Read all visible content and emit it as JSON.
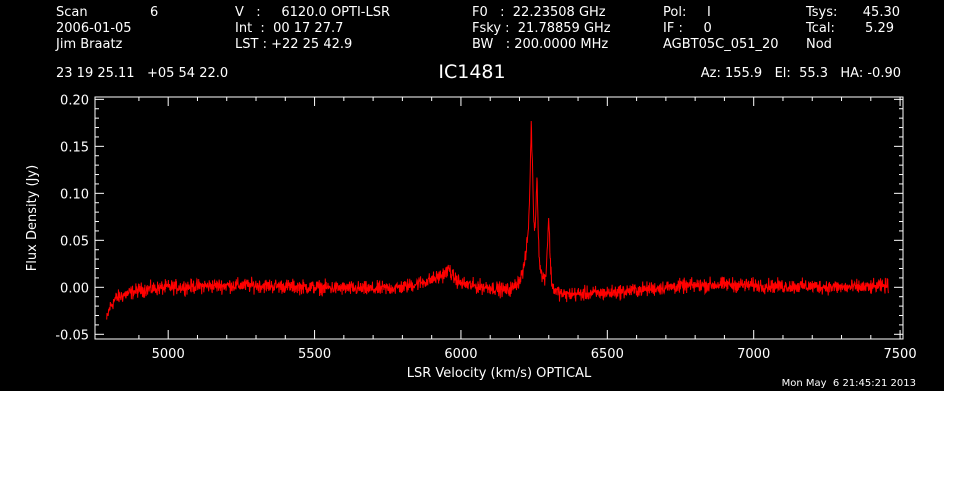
{
  "header": {
    "col1": {
      "scan_label": "Scan",
      "scan_value": "6",
      "date": "2006-01-05",
      "observer": "Jim Braatz"
    },
    "col2": {
      "v_line": "V   :     6120.0 OPTI-LSR",
      "int_line": "Int  :  00 17 27.7",
      "lst_line": "LST : +22 25 42.9"
    },
    "col3": {
      "f0_line": "F0   :  22.23508 GHz",
      "fsky_line": "Fsky :  21.78859 GHz",
      "bw_line": "BW   : 200.0000 MHz"
    },
    "col4": {
      "pol_line": "Pol:     I",
      "if_line": "IF :     0",
      "project": "AGBT05C_051_20"
    },
    "col5": {
      "tsys_label": "Tsys:",
      "tsys_value": "45.30",
      "tcal_label": "Tcal:",
      "tcal_value": "5.29",
      "mode": "Nod"
    },
    "coords": "23 19 25.11   +05 54 22.0",
    "object": "IC1481",
    "azel": "Az: 155.9   El:  55.3   HA: -0.90"
  },
  "footer": {
    "timestamp": "Mon May  6 21:45:21 2013"
  },
  "colors": {
    "background": "#000000",
    "axes": "#ffffff",
    "trace": "#ff0000"
  },
  "chart_data": {
    "type": "line",
    "title": "IC1481",
    "xlabel": "LSR Velocity (km/s) OPTICAL",
    "ylabel": "Flux Density (Jy)",
    "xlim": [
      4750,
      7510
    ],
    "ylim": [
      -0.055,
      0.2025
    ],
    "xticks": [
      5000,
      5500,
      6000,
      6500,
      7000,
      7500
    ],
    "xtick_labels": [
      "5000",
      "5500",
      "6000",
      "6500",
      "7000",
      "7500"
    ],
    "yticks": [
      -0.05,
      0.0,
      0.05,
      0.1,
      0.15,
      0.2
    ],
    "ytick_labels": [
      "-0.05",
      "0.00",
      "0.05",
      "0.10",
      "0.15",
      "0.20"
    ],
    "grid": false,
    "series": [
      {
        "x": [
          4790,
          4800,
          4820,
          4850,
          4900,
          5000,
          5100,
          5200,
          5300,
          5400,
          5500,
          5600,
          5700,
          5800,
          5850,
          5900,
          5930,
          5950,
          5960,
          5970,
          6000,
          6050,
          6100,
          6130,
          6160,
          6180,
          6200,
          6210,
          6220,
          6230,
          6235,
          6240,
          6245,
          6250,
          6255,
          6260,
          6265,
          6270,
          6280,
          6290,
          6300,
          6305,
          6310,
          6320,
          6350,
          6400,
          6500,
          6600,
          6700,
          6800,
          6900,
          7000,
          7100,
          7200,
          7300,
          7400,
          7460
        ],
        "y": [
          -0.035,
          -0.022,
          -0.012,
          -0.008,
          -0.003,
          0.0,
          0.001,
          0.002,
          0.002,
          0.001,
          0.0,
          -0.001,
          -0.002,
          0.0,
          0.004,
          0.008,
          0.012,
          0.016,
          0.02,
          0.012,
          0.004,
          0.001,
          0.0,
          -0.002,
          -0.003,
          0.0,
          0.008,
          0.015,
          0.03,
          0.06,
          0.1,
          0.175,
          0.12,
          0.06,
          0.075,
          0.12,
          0.05,
          0.02,
          0.01,
          0.012,
          0.075,
          0.03,
          0.004,
          -0.003,
          -0.008,
          -0.007,
          -0.006,
          -0.003,
          0.0,
          0.002,
          0.003,
          0.002,
          0.001,
          0.001,
          0.0,
          0.0,
          0.002
        ]
      }
    ]
  }
}
